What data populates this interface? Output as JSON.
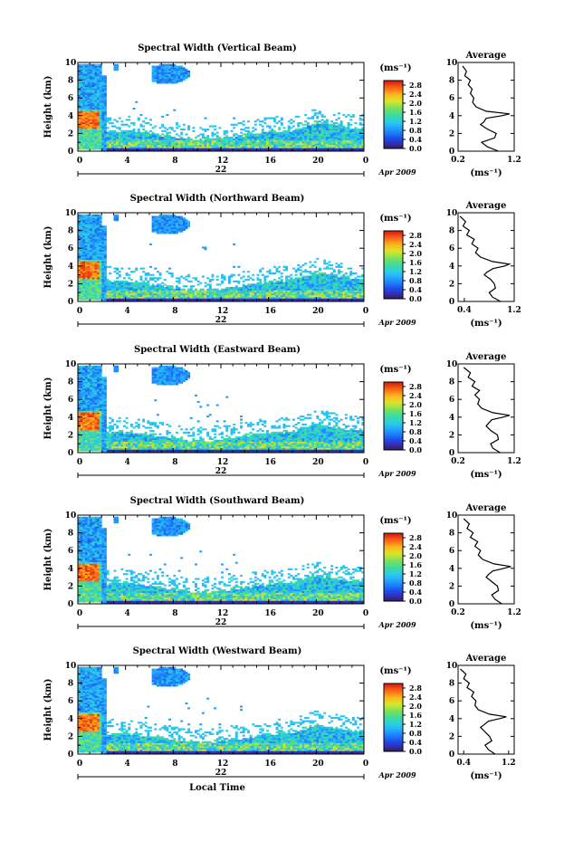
{
  "figure": {
    "bottom_xlabel": "Local Time",
    "date_label": "Apr 2009"
  },
  "chart_data": [
    {
      "type": "heatmap",
      "title": "Spectral Width (Vertical Beam)",
      "ylabel": "Height (km)",
      "xlim": [
        0,
        24
      ],
      "ylim": [
        0,
        10
      ],
      "xticks": [
        "0",
        "4",
        "8",
        "12",
        "16",
        "20",
        "0"
      ],
      "yticks": [
        "0",
        "2",
        "4",
        "6",
        "8",
        "10"
      ],
      "day_label": "22",
      "colorbar": {
        "unit": "(ms⁻¹)",
        "ticks": [
          "0.0",
          "0.4",
          "0.8",
          "1.2",
          "1.6",
          "2.0",
          "2.4",
          "2.8"
        ],
        "range": [
          0,
          3.0
        ]
      },
      "average_profile": {
        "title": "Average",
        "xlabel": "(ms⁻¹)",
        "xlim": [
          0.2,
          1.2
        ],
        "xticks": [
          "0.2",
          "1.2"
        ],
        "yticks": [
          "0",
          "2",
          "4",
          "6",
          "8",
          "10"
        ],
        "x": [
          0.92,
          0.72,
          0.62,
          0.85,
          0.88,
          0.72,
          0.6,
          0.66,
          0.7,
          0.98,
          1.12,
          0.7,
          0.52,
          0.46,
          0.48,
          0.42,
          0.45,
          0.38,
          0.42,
          0.32,
          0.35,
          0.28
        ],
        "y": [
          0.0,
          0.5,
          1.0,
          1.5,
          2.0,
          2.5,
          3.0,
          3.3,
          3.7,
          4.0,
          4.2,
          4.5,
          5.0,
          5.5,
          6.0,
          6.5,
          7.0,
          7.5,
          8.0,
          8.5,
          9.0,
          9.6
        ]
      }
    },
    {
      "type": "heatmap",
      "title": "Spectral Width (Northward Beam)",
      "ylabel": "Height (km)",
      "xlim": [
        0,
        24
      ],
      "ylim": [
        0,
        10
      ],
      "xticks": [
        "0",
        "4",
        "8",
        "12",
        "16",
        "20",
        "0"
      ],
      "yticks": [
        "0",
        "2",
        "4",
        "6",
        "8",
        "10"
      ],
      "day_label": "22",
      "colorbar": {
        "unit": "(ms⁻¹)",
        "ticks": [
          "0.0",
          "0.4",
          "0.8",
          "1.2",
          "1.6",
          "2.0",
          "2.4",
          "2.8"
        ],
        "range": [
          0,
          3.0
        ]
      },
      "average_profile": {
        "title": "Average",
        "xlabel": "(ms⁻¹)",
        "xlim": [
          0.3,
          1.2
        ],
        "xticks": [
          "0.4",
          "1.2"
        ],
        "yticks": [
          "0",
          "2",
          "4",
          "6",
          "8",
          "10"
        ],
        "x": [
          0.98,
          0.85,
          0.8,
          0.9,
          0.88,
          0.82,
          0.72,
          0.76,
          0.86,
          1.05,
          1.12,
          0.85,
          0.66,
          0.58,
          0.62,
          0.52,
          0.56,
          0.44,
          0.48,
          0.38,
          0.42,
          0.33
        ],
        "y": [
          0.0,
          0.5,
          1.0,
          1.5,
          2.0,
          2.5,
          3.0,
          3.3,
          3.7,
          4.0,
          4.2,
          4.5,
          5.0,
          5.5,
          6.0,
          6.5,
          7.0,
          7.5,
          8.0,
          8.5,
          9.0,
          9.6
        ]
      }
    },
    {
      "type": "heatmap",
      "title": "Spectral Width (Eastward Beam)",
      "ylabel": "Height (km)",
      "xlim": [
        0,
        24
      ],
      "ylim": [
        0,
        10
      ],
      "xticks": [
        "0",
        "4",
        "8",
        "12",
        "16",
        "20",
        "0"
      ],
      "yticks": [
        "0",
        "2",
        "4",
        "6",
        "8",
        "10"
      ],
      "day_label": "22",
      "colorbar": {
        "unit": "(ms⁻¹)",
        "ticks": [
          "0.0",
          "0.4",
          "0.8",
          "1.2",
          "1.6",
          "2.0",
          "2.4",
          "2.8"
        ],
        "range": [
          0,
          3.0
        ]
      },
      "average_profile": {
        "title": "Average",
        "xlabel": "(ms⁻¹)",
        "xlim": [
          0.2,
          1.2
        ],
        "xticks": [
          "0.2",
          "1.2"
        ],
        "yticks": [
          "0",
          "2",
          "4",
          "6",
          "8",
          "10"
        ],
        "x": [
          0.95,
          0.82,
          0.78,
          0.92,
          0.9,
          0.78,
          0.7,
          0.74,
          0.8,
          1.0,
          1.12,
          0.82,
          0.62,
          0.55,
          0.58,
          0.5,
          0.58,
          0.45,
          0.5,
          0.38,
          0.42,
          0.3
        ],
        "y": [
          0.0,
          0.5,
          1.0,
          1.5,
          2.0,
          2.5,
          3.0,
          3.3,
          3.7,
          4.0,
          4.2,
          4.5,
          5.0,
          5.5,
          6.0,
          6.5,
          7.0,
          7.5,
          8.0,
          8.5,
          9.0,
          9.6
        ]
      }
    },
    {
      "type": "heatmap",
      "title": "Spectral Width (Southward Beam)",
      "ylabel": "Height (km)",
      "xlim": [
        0,
        24
      ],
      "ylim": [
        0,
        10
      ],
      "xticks": [
        "0",
        "4",
        "8",
        "12",
        "16",
        "20",
        "0"
      ],
      "yticks": [
        "0",
        "2",
        "4",
        "6",
        "8",
        "10"
      ],
      "day_label": "22",
      "colorbar": {
        "unit": "(ms⁻¹)",
        "ticks": [
          "0.0",
          "0.4",
          "0.8",
          "1.2",
          "1.6",
          "2.0",
          "2.4",
          "2.8"
        ],
        "range": [
          0,
          3.0
        ]
      },
      "average_profile": {
        "title": "Average",
        "xlabel": "(ms⁻¹)",
        "xlim": [
          0.2,
          1.2
        ],
        "xticks": [
          "0.2",
          "1.2"
        ],
        "yticks": [
          "0",
          "2",
          "4",
          "6",
          "8",
          "10"
        ],
        "x": [
          0.98,
          0.86,
          0.8,
          0.92,
          0.9,
          0.8,
          0.7,
          0.74,
          0.82,
          1.02,
          1.14,
          0.84,
          0.64,
          0.56,
          0.6,
          0.5,
          0.55,
          0.42,
          0.47,
          0.36,
          0.4,
          0.3
        ],
        "y": [
          0.0,
          0.5,
          1.0,
          1.5,
          2.0,
          2.5,
          3.0,
          3.3,
          3.7,
          4.0,
          4.2,
          4.5,
          5.0,
          5.5,
          6.0,
          6.5,
          7.0,
          7.5,
          8.0,
          8.5,
          9.0,
          9.6
        ]
      }
    },
    {
      "type": "heatmap",
      "title": "Spectral Width (Westward Beam)",
      "ylabel": "Height (km)",
      "xlim": [
        0,
        24
      ],
      "ylim": [
        0,
        10
      ],
      "xticks": [
        "0",
        "4",
        "8",
        "12",
        "16",
        "20",
        "0"
      ],
      "yticks": [
        "0",
        "2",
        "4",
        "6",
        "8",
        "10"
      ],
      "day_label": "22",
      "colorbar": {
        "unit": "(ms⁻¹)",
        "ticks": [
          "0.0",
          "0.4",
          "0.8",
          "1.2",
          "1.6",
          "2.0",
          "2.4",
          "2.8"
        ],
        "range": [
          0,
          3.0
        ]
      },
      "average_profile": {
        "title": "Average",
        "xlabel": "(ms⁻¹)",
        "xlim": [
          0.3,
          1.3
        ],
        "xticks": [
          "0.4",
          "1.2"
        ],
        "yticks": [
          "0",
          "2",
          "4",
          "6",
          "8",
          "10"
        ],
        "x": [
          0.96,
          0.84,
          0.78,
          0.9,
          0.86,
          0.78,
          0.7,
          0.76,
          0.84,
          1.04,
          1.16,
          0.86,
          0.66,
          0.6,
          0.62,
          0.54,
          0.58,
          0.46,
          0.5,
          0.4,
          0.44,
          0.34
        ],
        "y": [
          0.0,
          0.5,
          1.0,
          1.5,
          2.0,
          2.5,
          3.0,
          3.3,
          3.7,
          4.0,
          4.2,
          4.5,
          5.0,
          5.5,
          6.0,
          6.5,
          7.0,
          7.5,
          8.0,
          8.5,
          9.0,
          9.6
        ]
      }
    }
  ]
}
